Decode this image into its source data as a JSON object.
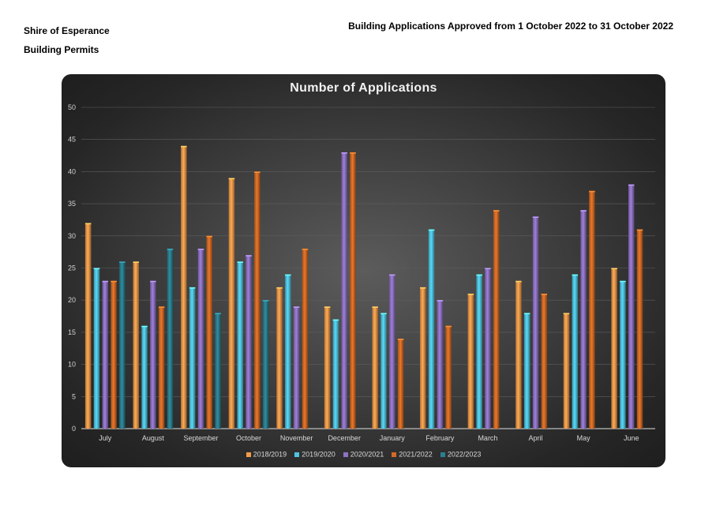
{
  "header": {
    "org_name": "Shire of Esperance",
    "department": "Building Permits",
    "report_title": "Building Applications Approved from 1 October 2022 to 31 October 2022"
  },
  "colors": {
    "series": [
      "#f59a4a",
      "#4fc4e0",
      "#8f72c4",
      "#d46a25",
      "#2a7f90"
    ]
  },
  "chart_data": {
    "type": "bar",
    "title": "Number of Applications",
    "xlabel": "",
    "ylabel": "",
    "ylim": [
      0,
      50
    ],
    "yticks": [
      0,
      5,
      10,
      15,
      20,
      25,
      30,
      35,
      40,
      45,
      50
    ],
    "grid": true,
    "legend_position": "bottom",
    "categories": [
      "July",
      "August",
      "September",
      "October",
      "November",
      "December",
      "January",
      "February",
      "March",
      "April",
      "May",
      "June"
    ],
    "series": [
      {
        "name": "2018/2019",
        "values": [
          32,
          26,
          44,
          39,
          22,
          19,
          19,
          22,
          21,
          23,
          18,
          25
        ]
      },
      {
        "name": "2019/2020",
        "values": [
          25,
          16,
          22,
          26,
          24,
          17,
          18,
          31,
          24,
          18,
          24,
          23
        ]
      },
      {
        "name": "2020/2021",
        "values": [
          23,
          23,
          28,
          27,
          19,
          43,
          24,
          20,
          25,
          33,
          34,
          38
        ]
      },
      {
        "name": "2021/2022",
        "values": [
          23,
          19,
          30,
          40,
          28,
          43,
          14,
          16,
          34,
          21,
          37,
          31
        ]
      },
      {
        "name": "2022/2023",
        "values": [
          26,
          28,
          18,
          20,
          null,
          null,
          null,
          null,
          null,
          null,
          null,
          null
        ]
      }
    ]
  }
}
